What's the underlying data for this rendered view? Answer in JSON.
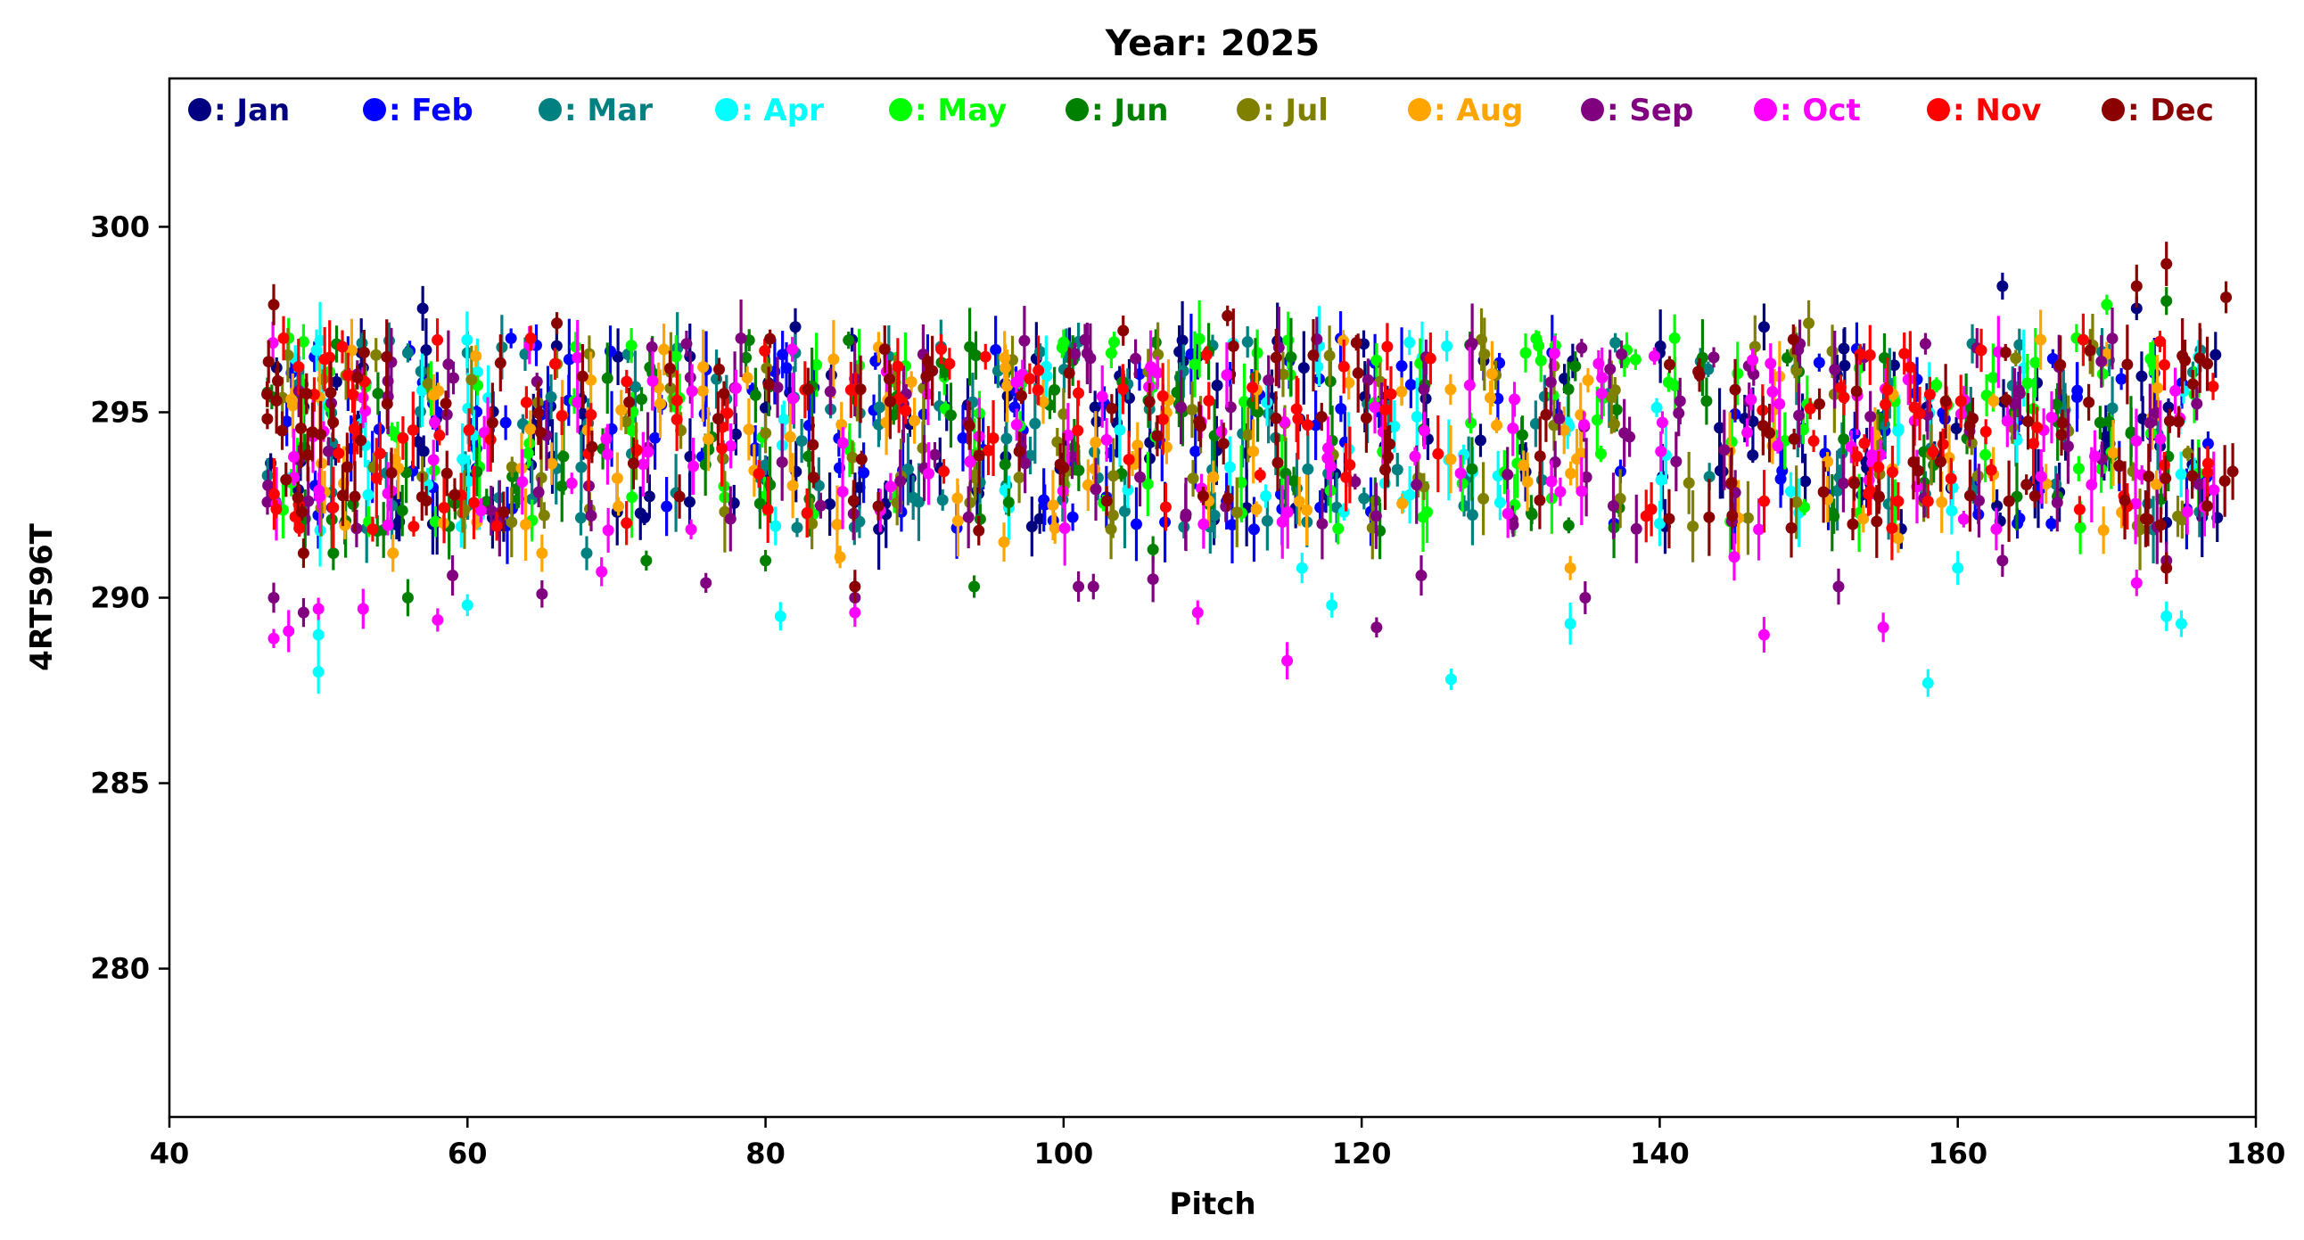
{
  "chart_data": {
    "type": "scatter",
    "title": "Year: 2025",
    "xlabel": "Pitch",
    "ylabel": "4RT596T",
    "xlim": [
      40,
      180
    ],
    "ylim": [
      276,
      304
    ],
    "xticks": [
      40,
      60,
      80,
      100,
      120,
      140,
      160,
      180
    ],
    "yticks": [
      280,
      285,
      290,
      295,
      300
    ],
    "grid": false,
    "legend_position": "top",
    "error_bars": true,
    "series": [
      {
        "name": "Jan",
        "label": ": Jan",
        "color": "#000080",
        "seed": 11,
        "x": [
          47,
          49,
          51,
          53,
          55,
          57,
          58,
          60,
          62,
          64,
          66,
          68,
          70,
          72,
          75,
          78,
          80,
          82,
          84,
          86,
          88,
          90,
          92,
          94,
          96,
          98,
          100,
          102,
          104,
          106,
          108,
          110,
          112,
          114,
          116,
          118,
          120,
          122,
          124,
          128,
          131,
          134,
          140,
          144,
          146,
          150,
          152,
          154,
          156,
          158,
          160,
          163,
          165,
          167,
          170,
          172,
          174,
          176,
          177
        ],
        "highlights": [
          [
            57,
            297.8
          ],
          [
            53,
            296.2
          ],
          [
            82,
            297.3
          ],
          [
            109,
            296.5
          ],
          [
            163,
            298.4
          ],
          [
            172,
            297.8
          ],
          [
            147,
            297.3
          ],
          [
            140,
            296.6
          ]
        ]
      },
      {
        "name": "Feb",
        "label": ": Feb",
        "color": "#0000ff",
        "seed": 23,
        "x": [
          48,
          50,
          52,
          54,
          56,
          58,
          61,
          63,
          65,
          67,
          70,
          73,
          76,
          79,
          81,
          83,
          85,
          87,
          89,
          91,
          93,
          95,
          97,
          99,
          101,
          103,
          105,
          107,
          109,
          111,
          113,
          115,
          117,
          119,
          121,
          123,
          129,
          133,
          137,
          145,
          148,
          151,
          153,
          155,
          157,
          159,
          161,
          164,
          166,
          168,
          171,
          173,
          175,
          177
        ],
        "highlights": [
          [
            57,
            295.8
          ],
          [
            63,
            292.4
          ],
          [
            164,
            292.0
          ]
        ]
      },
      {
        "name": "Mar",
        "label": ": Mar",
        "color": "#008080",
        "seed": 37,
        "x": [
          47,
          49,
          51,
          53,
          55,
          57,
          60,
          62,
          64,
          66,
          68,
          71,
          74,
          77,
          80,
          82,
          84,
          86,
          88,
          90,
          92,
          94,
          96,
          98,
          100,
          102,
          104,
          106,
          108,
          110,
          112,
          114,
          116,
          118,
          120,
          122,
          127,
          132,
          137,
          143,
          149,
          152,
          155,
          158,
          161,
          164,
          167,
          170,
          173,
          176
        ],
        "highlights": [
          [
            56,
            296.6
          ],
          [
            60,
            296.6
          ],
          [
            68,
            291.2
          ],
          [
            82,
            296.6
          ],
          [
            101,
            296.9
          ],
          [
            110,
            296.8
          ]
        ]
      },
      {
        "name": "Apr",
        "label": ": Apr",
        "color": "#00ffff",
        "seed": 41,
        "x": [
          48,
          50,
          50,
          53,
          57,
          60,
          60,
          61,
          81,
          96,
          99,
          104,
          111,
          114,
          117,
          119,
          122,
          123,
          124,
          126,
          127,
          129,
          134,
          140,
          149,
          156,
          158,
          160,
          164,
          175,
          176
        ],
        "highlights": [
          [
            50,
            288.0
          ],
          [
            50,
            289.0
          ],
          [
            60,
            289.8
          ],
          [
            81,
            289.5
          ],
          [
            116,
            290.8
          ],
          [
            118,
            289.8
          ],
          [
            126,
            287.8
          ],
          [
            134,
            289.3
          ],
          [
            140,
            292.0
          ],
          [
            158,
            287.7
          ],
          [
            160,
            290.8
          ],
          [
            174,
            289.5
          ],
          [
            175,
            289.3
          ]
        ]
      },
      {
        "name": "May",
        "label": ": May",
        "color": "#00ff00",
        "seed": 53,
        "x": [
          48,
          49,
          51,
          53,
          55,
          58,
          61,
          64,
          67,
          71,
          74,
          77,
          80,
          83,
          86,
          89,
          92,
          94,
          97,
          100,
          103,
          106,
          109,
          112,
          115,
          118,
          121,
          124,
          127,
          130,
          132,
          133,
          136,
          138,
          141,
          145,
          148,
          150,
          153,
          156,
          159,
          162,
          165,
          168,
          170,
          173,
          176
        ],
        "highlights": [
          [
            48,
            297.0
          ],
          [
            49,
            296.9
          ],
          [
            71,
            296.8
          ],
          [
            74,
            296.5
          ],
          [
            113,
            296.6
          ],
          [
            121,
            296.4
          ],
          [
            131,
            296.6
          ],
          [
            133,
            296.8
          ],
          [
            141,
            297.0
          ],
          [
            170,
            297.9
          ]
        ]
      },
      {
        "name": "Jun",
        "label": ": Jun",
        "color": "#008000",
        "seed": 67,
        "x": [
          47,
          49,
          51,
          52,
          54,
          56,
          59,
          61,
          63,
          66,
          69,
          72,
          76,
          79,
          80,
          83,
          86,
          89,
          92,
          94,
          96,
          99,
          101,
          104,
          106,
          108,
          110,
          113,
          115,
          118,
          121,
          124,
          127,
          131,
          134,
          137,
          143,
          149,
          152,
          155,
          158,
          161,
          164,
          167,
          170,
          172,
          174
        ],
        "highlights": [
          [
            51,
            291.2
          ],
          [
            56,
            290.0
          ],
          [
            72,
            291.0
          ],
          [
            80,
            291.0
          ],
          [
            94,
            290.3
          ],
          [
            106,
            291.3
          ],
          [
            174,
            298.0
          ]
        ]
      },
      {
        "name": "Jul",
        "label": ": Jul",
        "color": "#808000",
        "seed": 79,
        "x": [
          48,
          50,
          52,
          54,
          57,
          60,
          63,
          65,
          68,
          71,
          74,
          77,
          80,
          83,
          86,
          89,
          91,
          94,
          97,
          100,
          103,
          106,
          109,
          112,
          115,
          118,
          121,
          124,
          128,
          133,
          137,
          142,
          146,
          149,
          152,
          155,
          158,
          161,
          164,
          167,
          169,
          172,
          175
        ],
        "highlights": [
          [
            66,
            296.3
          ],
          [
            129,
            296.0
          ],
          [
            137,
            295.6
          ],
          [
            150,
            297.4
          ]
        ]
      },
      {
        "name": "Aug",
        "label": ": Aug",
        "color": "#ffa500",
        "seed": 83,
        "x": [
          48,
          50,
          52,
          55,
          58,
          61,
          64,
          66,
          68,
          70,
          73,
          76,
          79,
          82,
          85,
          88,
          90,
          93,
          96,
          99,
          102,
          105,
          107,
          110,
          113,
          116,
          119,
          123,
          126,
          129,
          131,
          134,
          135,
          145,
          148,
          151,
          154,
          156,
          159,
          162,
          166,
          170,
          173
        ],
        "highlights": [
          [
            55,
            291.2
          ],
          [
            65,
            291.2
          ],
          [
            85,
            291.1
          ],
          [
            96,
            291.5
          ],
          [
            134,
            290.8
          ],
          [
            156,
            291.6
          ],
          [
            171,
            292.3
          ]
        ]
      },
      {
        "name": "Sep",
        "label": ": Sep",
        "color": "#800080",
        "seed": 97,
        "x": [
          47,
          49,
          51,
          53,
          55,
          59,
          62,
          65,
          68,
          72,
          75,
          78,
          81,
          84,
          86,
          89,
          91,
          94,
          97,
          101,
          102,
          105,
          108,
          111,
          114,
          117,
          120,
          121,
          124,
          127,
          130,
          133,
          135,
          137,
          138,
          141,
          144,
          145,
          146,
          149,
          152,
          154,
          158,
          161,
          164,
          167,
          170,
          173,
          176
        ],
        "highlights": [
          [
            47,
            290.0
          ],
          [
            49,
            289.6
          ],
          [
            59,
            290.6
          ],
          [
            65,
            290.1
          ],
          [
            76,
            290.4
          ],
          [
            86,
            290.0
          ],
          [
            101,
            290.3
          ],
          [
            102,
            290.3
          ],
          [
            106,
            290.5
          ],
          [
            121,
            289.2
          ],
          [
            124,
            290.6
          ],
          [
            135,
            290.0
          ],
          [
            152,
            290.3
          ],
          [
            163,
            291.0
          ],
          [
            174,
            291.0
          ]
        ]
      },
      {
        "name": "Oct",
        "label": ": Oct",
        "color": "#ff00ff",
        "seed": 101,
        "x": [
          47,
          48,
          50,
          50,
          53,
          55,
          58,
          61,
          64,
          67,
          69,
          72,
          75,
          78,
          82,
          85,
          88,
          91,
          94,
          97,
          100,
          103,
          106,
          109,
          111,
          115,
          118,
          121,
          124,
          127,
          130,
          133,
          135,
          136,
          140,
          146,
          147,
          148,
          153,
          154,
          155,
          157,
          160,
          163,
          166,
          169,
          172,
          174,
          175,
          177
        ],
        "highlights": [
          [
            47,
            288.9
          ],
          [
            48,
            289.1
          ],
          [
            50,
            289.7
          ],
          [
            53,
            289.7
          ],
          [
            58,
            289.4
          ],
          [
            69,
            290.7
          ],
          [
            86,
            289.6
          ],
          [
            109,
            289.6
          ],
          [
            115,
            288.3
          ],
          [
            145,
            291.1
          ],
          [
            147,
            289.0
          ],
          [
            155,
            289.2
          ],
          [
            172,
            290.4
          ]
        ]
      },
      {
        "name": "Nov",
        "label": ": Nov",
        "color": "#ff0000",
        "seed": 113,
        "x": [
          47,
          48,
          49,
          50,
          51,
          52,
          53,
          54,
          56,
          58,
          60,
          62,
          64,
          66,
          68,
          71,
          74,
          77,
          80,
          83,
          86,
          89,
          92,
          95,
          98,
          101,
          104,
          107,
          110,
          113,
          116,
          119,
          122,
          125,
          139,
          147,
          150,
          152,
          153,
          154,
          155,
          156,
          157,
          158,
          159,
          160,
          162,
          165,
          168,
          171,
          174,
          177
        ],
        "highlights": [
          [
            52,
            296.0
          ],
          [
            154,
            292.8
          ],
          [
            156,
            292.6
          ],
          [
            158,
            292.6
          ]
        ]
      },
      {
        "name": "Dec",
        "label": ": Dec",
        "color": "#8b0000",
        "seed": 127,
        "x": [
          47,
          47,
          48,
          49,
          49,
          50,
          51,
          52,
          53,
          55,
          57,
          59,
          62,
          65,
          68,
          71,
          74,
          77,
          80,
          83,
          86,
          88,
          91,
          94,
          97,
          100,
          103,
          106,
          109,
          111,
          114,
          117,
          120,
          122,
          132,
          141,
          143,
          145,
          147,
          149,
          151,
          153,
          155,
          157,
          159,
          161,
          163,
          165,
          167,
          169,
          171,
          173,
          174,
          175,
          176,
          177,
          178
        ],
        "highlights": [
          [
            47,
            297.9
          ],
          [
            49,
            291.2
          ],
          [
            66,
            297.4
          ],
          [
            86,
            290.3
          ],
          [
            88,
            296.7
          ],
          [
            104,
            297.2
          ],
          [
            111,
            297.6
          ],
          [
            172,
            298.4
          ],
          [
            174,
            299.0
          ],
          [
            174,
            290.8
          ],
          [
            178,
            298.1
          ]
        ]
      }
    ]
  }
}
